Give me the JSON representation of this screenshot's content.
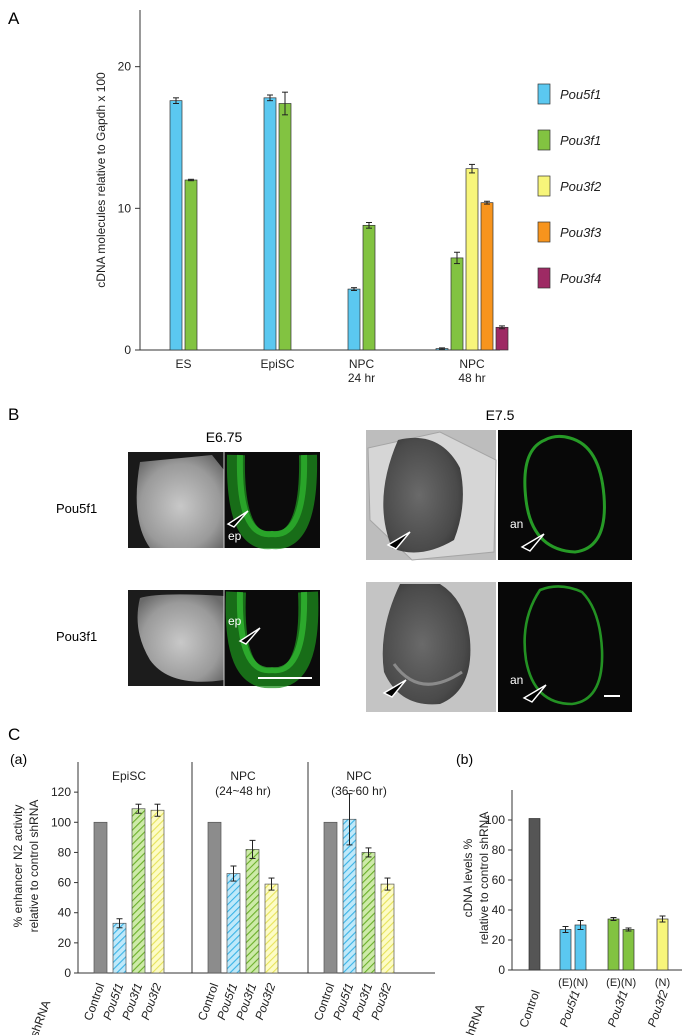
{
  "panel_labels": {
    "a": "A",
    "b": "B",
    "c": "C",
    "c_a": "(a)",
    "c_b": "(b)"
  },
  "colors": {
    "pou5f1": "#5bc8f0",
    "pou3f1": "#82c341",
    "pou3f2": "#f7f57a",
    "pou3f3": "#f7941d",
    "pou3f4": "#9e2a64",
    "control": "#8c8c8c",
    "control_dark": "#555555",
    "axis": "#333333",
    "micro_dark": "#101010",
    "micro_green": "#2bd42b"
  },
  "chart_data": [
    {
      "type": "bar",
      "title": "",
      "ylabel": "cDNA molecules relative to Gapdh x 100",
      "xlabel": "",
      "ylim": [
        0,
        24
      ],
      "yticks": [
        "0",
        "10",
        "20"
      ],
      "categories": [
        "ES",
        "EpiSC",
        "NPC 24 hr",
        "NPC 48 hr"
      ],
      "category_lines": [
        [
          "ES"
        ],
        [
          "EpiSC"
        ],
        [
          "NPC",
          "24 hr"
        ],
        [
          "NPC",
          "48 hr"
        ]
      ],
      "series": [
        {
          "name": "Pou5f1",
          "values": [
            17.6,
            17.8,
            4.3,
            0.1
          ],
          "errors": [
            0.2,
            0.2,
            0.1,
            0.05
          ]
        },
        {
          "name": "Pou3f1",
          "values": [
            12.0,
            17.4,
            8.8,
            6.5
          ],
          "errors": [
            0.05,
            0.8,
            0.2,
            0.4
          ]
        },
        {
          "name": "Pou3f2",
          "values": [
            null,
            null,
            null,
            12.8
          ],
          "errors": [
            null,
            null,
            null,
            0.3
          ]
        },
        {
          "name": "Pou3f3",
          "values": [
            null,
            null,
            null,
            10.4
          ],
          "errors": [
            null,
            null,
            null,
            0.1
          ]
        },
        {
          "name": "Pou3f4",
          "values": [
            null,
            null,
            null,
            1.6
          ],
          "errors": [
            null,
            null,
            null,
            0.1
          ]
        }
      ],
      "legend_position": "right",
      "grid": false
    },
    {
      "type": "bar",
      "title": "",
      "ylabel_lines": [
        "% enhancer N2 activity",
        "relative to control shRNA"
      ],
      "ylim": [
        0,
        140
      ],
      "yticks": [
        "0",
        "20",
        "40",
        "60",
        "80",
        "100",
        "120"
      ],
      "row_label": "shRNA",
      "groups": [
        {
          "name": "EpiSC",
          "name_lines": [
            "EpiSC"
          ],
          "categories": [
            "Control",
            "Pou5f1",
            "Pou3f1",
            "Pou3f2"
          ],
          "values": [
            100,
            33,
            109,
            108
          ],
          "errors": [
            0,
            3,
            3,
            4
          ]
        },
        {
          "name": "NPC (24~48 hr)",
          "name_lines": [
            "NPC",
            "(24~48 hr)"
          ],
          "categories": [
            "Control",
            "Pou5f1",
            "Pou3f1",
            "Pou3f2"
          ],
          "values": [
            100,
            66,
            82,
            59
          ],
          "errors": [
            0,
            5,
            6,
            4
          ]
        },
        {
          "name": "NPC (36~60 hr)",
          "name_lines": [
            "NPC",
            "(36~60 hr)"
          ],
          "categories": [
            "Control",
            "Pou5f1",
            "Pou3f1",
            "Pou3f2"
          ],
          "values": [
            100,
            102,
            80,
            59
          ],
          "errors": [
            0,
            17,
            3,
            4
          ]
        }
      ],
      "grid": false
    },
    {
      "type": "bar",
      "title": "",
      "ylabel_lines": [
        "cDNA levels %",
        "relative to control shRNA"
      ],
      "ylim": [
        0,
        120
      ],
      "yticks": [
        "0",
        "20",
        "40",
        "60",
        "80",
        "100"
      ],
      "row_label": "shRNA",
      "categories": [
        "Control",
        "Pou5f1",
        "Pou3f1",
        "Pou3f2"
      ],
      "bars": [
        {
          "category": "Control",
          "sub": "",
          "value": 101,
          "error": 0
        },
        {
          "category": "Pou5f1",
          "sub": "(E)",
          "value": 27,
          "error": 2
        },
        {
          "category": "Pou5f1",
          "sub": "(N)",
          "value": 30,
          "error": 3
        },
        {
          "category": "Pou3f1",
          "sub": "(E)",
          "value": 34,
          "error": 1
        },
        {
          "category": "Pou3f1",
          "sub": "(N)",
          "value": 27,
          "error": 1
        },
        {
          "category": "Pou3f2",
          "sub": "(N)",
          "value": 34,
          "error": 2
        }
      ],
      "grid": false
    }
  ],
  "micro": {
    "stage_e675": "E6.75",
    "stage_e75": "E7.5",
    "row_pou5f1": "Pou5f1",
    "row_pou3f1": "Pou3f1",
    "ep": "ep",
    "an": "an"
  }
}
